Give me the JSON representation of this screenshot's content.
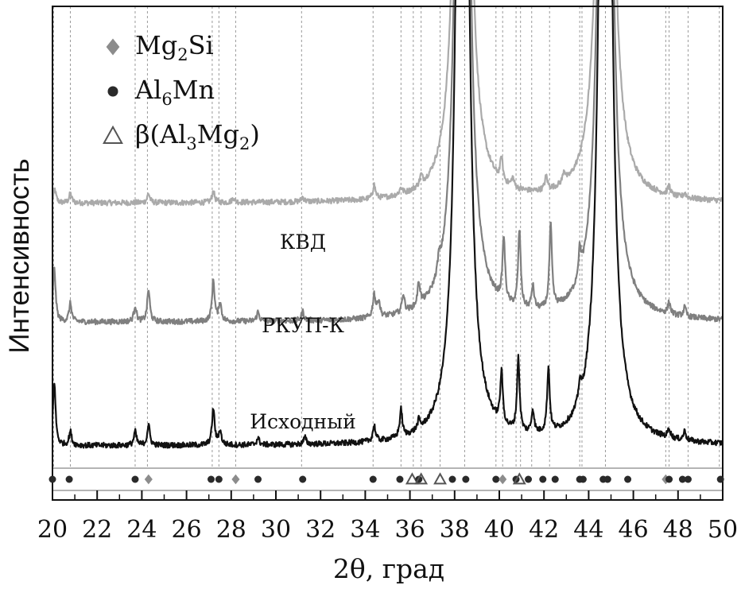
{
  "chart_data": {
    "type": "line",
    "xlabel": "2θ, град",
    "ylabel": "Интенсивность",
    "xlim": [
      20,
      50
    ],
    "x_ticks": [
      "20",
      "22",
      "24",
      "26",
      "28",
      "30",
      "32",
      "34",
      "36",
      "38",
      "40",
      "42",
      "44",
      "46",
      "48",
      "50"
    ],
    "grid": "dashed vertical reference lines at phase peak positions",
    "legend_position": "top-left",
    "legend": [
      {
        "symbol": "diamond",
        "base": "Mg",
        "sub1": "2",
        "mid": "Si",
        "sub2": "",
        "tail": "",
        "color": "#8c8c8c"
      },
      {
        "symbol": "circle",
        "base": "Al",
        "sub1": "6",
        "mid": "Mn",
        "sub2": "",
        "tail": "",
        "color": "#2a2a2a"
      },
      {
        "symbol": "triangle",
        "base": "β(Al",
        "sub1": "3",
        "mid": "Mg",
        "sub2": "2",
        "tail": ")",
        "color": "#555555"
      }
    ],
    "series": [
      {
        "name": "КВД",
        "color": "#aaaaaa",
        "baseline": 0.57,
        "peaks": [
          [
            20.1,
            0.03
          ],
          [
            20.8,
            0.02
          ],
          [
            24.3,
            0.02
          ],
          [
            27.2,
            0.025
          ],
          [
            28.1,
            0.01
          ],
          [
            31.2,
            0.01
          ],
          [
            34.4,
            0.03
          ],
          [
            35.6,
            0.015
          ],
          [
            36.5,
            0.02
          ],
          [
            38.35,
            3.0
          ],
          [
            40.1,
            0.05
          ],
          [
            40.6,
            0.02
          ],
          [
            42.1,
            0.03
          ],
          [
            42.9,
            0.025
          ],
          [
            44.75,
            3.0
          ],
          [
            47.6,
            0.02
          ],
          [
            48.3,
            0.01
          ]
        ]
      },
      {
        "name": "РКУП-К",
        "color": "#7f7f7f",
        "baseline": 0.31,
        "peaks": [
          [
            20.08,
            0.12
          ],
          [
            20.8,
            0.04
          ],
          [
            23.7,
            0.035
          ],
          [
            24.3,
            0.07
          ],
          [
            27.2,
            0.09
          ],
          [
            27.5,
            0.04
          ],
          [
            29.2,
            0.02
          ],
          [
            31.2,
            0.02
          ],
          [
            34.4,
            0.05
          ],
          [
            34.6,
            0.035
          ],
          [
            35.7,
            0.04
          ],
          [
            36.4,
            0.05
          ],
          [
            37.3,
            0.03
          ],
          [
            38.35,
            3.0
          ],
          [
            40.2,
            0.14
          ],
          [
            40.9,
            0.17
          ],
          [
            41.5,
            0.05
          ],
          [
            42.3,
            0.18
          ],
          [
            43.6,
            0.06
          ],
          [
            44.75,
            3.0
          ],
          [
            47.6,
            0.025
          ],
          [
            48.3,
            0.02
          ]
        ]
      },
      {
        "name": "Исходный",
        "color": "#111111",
        "baseline": 0.04,
        "peaks": [
          [
            20.08,
            0.14
          ],
          [
            20.8,
            0.03
          ],
          [
            23.7,
            0.03
          ],
          [
            24.3,
            0.045
          ],
          [
            27.2,
            0.08
          ],
          [
            27.5,
            0.03
          ],
          [
            29.2,
            0.015
          ],
          [
            31.3,
            0.015
          ],
          [
            34.4,
            0.035
          ],
          [
            35.6,
            0.06
          ],
          [
            36.4,
            0.02
          ],
          [
            38.35,
            3.0
          ],
          [
            40.1,
            0.11
          ],
          [
            40.85,
            0.16
          ],
          [
            41.5,
            0.05
          ],
          [
            42.2,
            0.14
          ],
          [
            43.6,
            0.04
          ],
          [
            44.75,
            3.0
          ],
          [
            47.6,
            0.02
          ],
          [
            48.3,
            0.02
          ]
        ]
      }
    ],
    "reference_lines": [
      20.05,
      20.8,
      23.7,
      24.25,
      27.15,
      27.45,
      28.2,
      31.15,
      34.35,
      35.6,
      36.15,
      36.5,
      37.35,
      38.45,
      39.85,
      40.15,
      40.75,
      40.95,
      41.45,
      42.25,
      43.6,
      43.7,
      44.75,
      47.45,
      47.6,
      48.45,
      49.85
    ],
    "markers": [
      {
        "x": 20.0,
        "type": "circle"
      },
      {
        "x": 20.75,
        "type": "circle"
      },
      {
        "x": 23.7,
        "type": "circle"
      },
      {
        "x": 24.3,
        "type": "diamond"
      },
      {
        "x": 27.1,
        "type": "circle"
      },
      {
        "x": 27.45,
        "type": "circle"
      },
      {
        "x": 28.2,
        "type": "diamond"
      },
      {
        "x": 29.2,
        "type": "circle"
      },
      {
        "x": 31.2,
        "type": "circle"
      },
      {
        "x": 34.35,
        "type": "circle"
      },
      {
        "x": 35.55,
        "type": "circle"
      },
      {
        "x": 36.1,
        "type": "triangle"
      },
      {
        "x": 36.4,
        "type": "circle"
      },
      {
        "x": 36.5,
        "type": "triangle"
      },
      {
        "x": 37.35,
        "type": "triangle"
      },
      {
        "x": 37.9,
        "type": "circle"
      },
      {
        "x": 38.5,
        "type": "circle"
      },
      {
        "x": 39.85,
        "type": "circle"
      },
      {
        "x": 40.15,
        "type": "diamond"
      },
      {
        "x": 40.75,
        "type": "circle"
      },
      {
        "x": 40.9,
        "type": "triangle"
      },
      {
        "x": 41.3,
        "type": "circle"
      },
      {
        "x": 41.95,
        "type": "circle"
      },
      {
        "x": 42.5,
        "type": "circle"
      },
      {
        "x": 43.6,
        "type": "circle"
      },
      {
        "x": 43.75,
        "type": "circle"
      },
      {
        "x": 44.65,
        "type": "circle"
      },
      {
        "x": 44.85,
        "type": "circle"
      },
      {
        "x": 45.75,
        "type": "circle"
      },
      {
        "x": 47.45,
        "type": "diamond"
      },
      {
        "x": 47.6,
        "type": "circle"
      },
      {
        "x": 48.2,
        "type": "circle"
      },
      {
        "x": 48.45,
        "type": "circle"
      },
      {
        "x": 49.9,
        "type": "circle"
      }
    ]
  }
}
